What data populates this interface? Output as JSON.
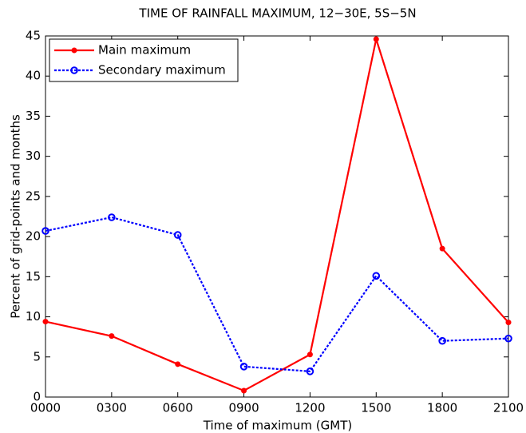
{
  "chart_data": {
    "type": "line",
    "title": "TIME OF RAINFALL MAXIMUM, 12−30E, 5S−5N",
    "x_label": "Time of maximum (GMT)",
    "y_label": "Percent of grid-points and months",
    "categories": [
      "0000",
      "0300",
      "0600",
      "0900",
      "1200",
      "1500",
      "1800",
      "2100"
    ],
    "series": [
      {
        "name": "Main maximum",
        "color": "#ff0000",
        "style": "solid",
        "marker": "dot",
        "values": [
          9.4,
          7.6,
          4.1,
          0.8,
          5.3,
          44.6,
          18.5,
          9.3
        ]
      },
      {
        "name": "Secondary maximum",
        "color": "#0000ff",
        "style": "dotted",
        "marker": "circle",
        "values": [
          20.7,
          22.4,
          20.2,
          3.8,
          3.2,
          15.1,
          7.0,
          7.3
        ]
      }
    ],
    "ylim": [
      0,
      45
    ],
    "yticks": [
      0,
      5,
      10,
      15,
      20,
      25,
      30,
      35,
      40,
      45
    ],
    "grid": false,
    "legend": "top-left"
  }
}
